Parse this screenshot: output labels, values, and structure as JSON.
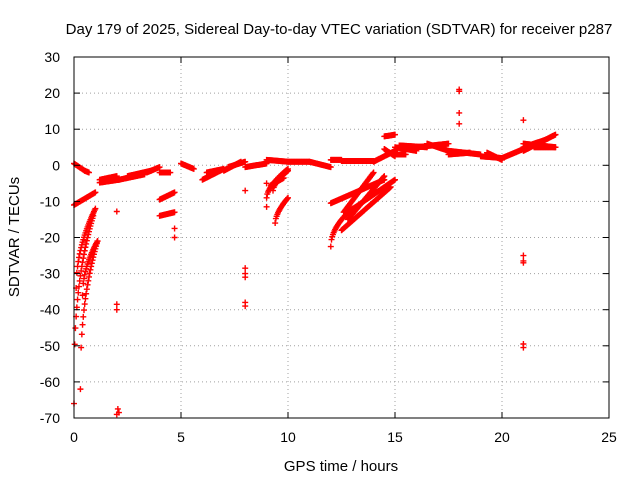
{
  "chart_data": {
    "type": "scatter",
    "title": "Day 179 of 2025, Sidereal Day-to-day VTEC variation (SDTVAR) for receiver p287",
    "xlabel": "GPS time / hours",
    "ylabel": "SDTVAR / TECUs",
    "xlim": [
      0,
      25
    ],
    "ylim": [
      -70,
      30
    ],
    "xticks": [
      0,
      5,
      10,
      15,
      20,
      25
    ],
    "yticks": [
      -70,
      -60,
      -50,
      -40,
      -30,
      -20,
      -10,
      0,
      10,
      20,
      30
    ],
    "grid": true,
    "marker": "+",
    "color": "#ff0000",
    "segments": [
      {
        "x0": 0.0,
        "x1": 0.5,
        "y0": 0.5,
        "y1": -1.5
      },
      {
        "x0": 0.5,
        "x1": 0.7,
        "y0": -1.5,
        "y1": -2.0
      },
      {
        "x0": 0.0,
        "x1": 1.0,
        "y0": -11.0,
        "y1": -7.5
      },
      {
        "x0": 0.0,
        "x1": 0.9,
        "y0": -66.0,
        "y1": -14.0,
        "curve": 0.35
      },
      {
        "x0": 0.1,
        "x1": 1.0,
        "y0": -34.0,
        "y1": -12.0,
        "curve": 0.5
      },
      {
        "x0": 0.3,
        "x1": 1.1,
        "y0": -62.0,
        "y1": -21.0,
        "curve": 0.4
      },
      {
        "x0": 0.4,
        "x1": 1.1,
        "y0": -36.0,
        "y1": -21.0,
        "curve": 0.5
      },
      {
        "x0": 1.2,
        "x1": 2.0,
        "y0": -4.0,
        "y1": -3.0
      },
      {
        "x0": 1.2,
        "x1": 2.1,
        "y0": -4.8,
        "y1": -4.0
      },
      {
        "x0": 2.1,
        "x1": 3.3,
        "y0": -4.0,
        "y1": -2.5
      },
      {
        "x0": 2.5,
        "x1": 3.6,
        "y0": -3.0,
        "y1": -1.5
      },
      {
        "x0": 3.4,
        "x1": 4.0,
        "y0": -2.0,
        "y1": -0.5
      },
      {
        "x0": 4.0,
        "x1": 4.5,
        "y0": -2.0,
        "y1": -2.0
      },
      {
        "x0": 4.0,
        "x1": 4.7,
        "y0": -9.5,
        "y1": -7.5
      },
      {
        "x0": 4.0,
        "x1": 4.7,
        "y0": -14.0,
        "y1": -13.0
      },
      {
        "x0": 5.0,
        "x1": 5.6,
        "y0": 0.5,
        "y1": -1.0
      },
      {
        "x0": 6.0,
        "x1": 7.0,
        "y0": -4.0,
        "y1": -1.0
      },
      {
        "x0": 6.2,
        "x1": 7.0,
        "y0": -2.0,
        "y1": -1.0
      },
      {
        "x0": 7.0,
        "x1": 7.8,
        "y0": -1.5,
        "y1": 1.0
      },
      {
        "x0": 7.2,
        "x1": 8.0,
        "y0": -0.5,
        "y1": 1.0
      },
      {
        "x0": 8.0,
        "x1": 9.0,
        "y0": -0.5,
        "y1": 0.5
      },
      {
        "x0": 9.0,
        "x1": 10.0,
        "y0": 1.5,
        "y1": 1.0
      },
      {
        "x0": 9.0,
        "x1": 10.0,
        "y0": -9.0,
        "y1": -1.0,
        "curve": 0.6
      },
      {
        "x0": 9.3,
        "x1": 10.0,
        "y0": -7.0,
        "y1": -1.5,
        "curve": 0.6
      },
      {
        "x0": 9.2,
        "x1": 9.8,
        "y0": -5.5,
        "y1": -3.5
      },
      {
        "x0": 9.4,
        "x1": 10.0,
        "y0": -16.0,
        "y1": -9.0,
        "curve": 0.6
      },
      {
        "x0": 10.0,
        "x1": 11.0,
        "y0": 1.0,
        "y1": 1.0
      },
      {
        "x0": 11.0,
        "x1": 12.0,
        "y0": 1.0,
        "y1": -0.5
      },
      {
        "x0": 12.0,
        "x1": 12.5,
        "y0": 1.5,
        "y1": 1.5
      },
      {
        "x0": 12.5,
        "x1": 14.0,
        "y0": 1.2,
        "y1": 1.2
      },
      {
        "x0": 12.0,
        "x1": 14.5,
        "y0": -10.5,
        "y1": -4.0
      },
      {
        "x0": 12.0,
        "x1": 13.0,
        "y0": -22.5,
        "y1": -12.0,
        "curve": 0.5
      },
      {
        "x0": 12.6,
        "x1": 14.0,
        "y0": -13.0,
        "y1": -2.0
      },
      {
        "x0": 12.8,
        "x1": 14.5,
        "y0": -15.0,
        "y1": -3.0
      },
      {
        "x0": 12.5,
        "x1": 14.8,
        "y0": -18.0,
        "y1": -6.0
      },
      {
        "x0": 12.8,
        "x1": 15.0,
        "y0": -13.0,
        "y1": -4.0
      },
      {
        "x0": 14.0,
        "x1": 15.0,
        "y0": 1.0,
        "y1": 4.0
      },
      {
        "x0": 14.5,
        "x1": 15.0,
        "y0": 4.5,
        "y1": 2.5
      },
      {
        "x0": 14.5,
        "x1": 15.0,
        "y0": 8.0,
        "y1": 8.5
      },
      {
        "x0": 15.0,
        "x1": 16.0,
        "y0": 5.0,
        "y1": 4.0
      },
      {
        "x0": 15.0,
        "x1": 15.5,
        "y0": 3.0,
        "y1": 3.0
      },
      {
        "x0": 15.2,
        "x1": 16.5,
        "y0": 5.5,
        "y1": 5.0
      },
      {
        "x0": 16.0,
        "x1": 17.5,
        "y0": 5.0,
        "y1": 6.0
      },
      {
        "x0": 16.5,
        "x1": 17.5,
        "y0": 6.0,
        "y1": 4.0
      },
      {
        "x0": 17.5,
        "x1": 19.0,
        "y0": 4.0,
        "y1": 3.0
      },
      {
        "x0": 17.5,
        "x1": 18.5,
        "y0": 3.0,
        "y1": 3.5
      },
      {
        "x0": 19.0,
        "x1": 20.0,
        "y0": 2.5,
        "y1": 2.0
      },
      {
        "x0": 19.3,
        "x1": 20.0,
        "y0": 3.5,
        "y1": 1.5
      },
      {
        "x0": 20.0,
        "x1": 21.0,
        "y0": 2.0,
        "y1": 4.5
      },
      {
        "x0": 21.0,
        "x1": 22.5,
        "y0": 4.0,
        "y1": 8.5
      },
      {
        "x0": 21.0,
        "x1": 22.5,
        "y0": 6.0,
        "y1": 5.0
      },
      {
        "x0": 21.0,
        "x1": 22.0,
        "y0": 5.0,
        "y1": 7.0
      },
      {
        "x0": 21.5,
        "x1": 22.5,
        "y0": 5.0,
        "y1": 5.0
      }
    ],
    "outliers": [
      {
        "x": 2.0,
        "y": -12.8
      },
      {
        "x": 2.0,
        "y": -38.5
      },
      {
        "x": 2.0,
        "y": -40.0
      },
      {
        "x": 2.05,
        "y": -67.5
      },
      {
        "x": 2.1,
        "y": -68.5
      },
      {
        "x": 2.0,
        "y": -69.0
      },
      {
        "x": 4.7,
        "y": -17.5
      },
      {
        "x": 4.7,
        "y": -20.0
      },
      {
        "x": 8.0,
        "y": -7.0
      },
      {
        "x": 8.0,
        "y": -28.5
      },
      {
        "x": 8.0,
        "y": -30.0
      },
      {
        "x": 8.0,
        "y": -31.0
      },
      {
        "x": 8.0,
        "y": -38.0
      },
      {
        "x": 8.0,
        "y": -39.0
      },
      {
        "x": 9.0,
        "y": -11.5
      },
      {
        "x": 9.0,
        "y": -5.0
      },
      {
        "x": 18.0,
        "y": 21.0
      },
      {
        "x": 18.0,
        "y": 20.5
      },
      {
        "x": 18.0,
        "y": 14.5
      },
      {
        "x": 18.0,
        "y": 11.5
      },
      {
        "x": 21.0,
        "y": 12.5
      },
      {
        "x": 21.0,
        "y": -25.0
      },
      {
        "x": 21.0,
        "y": -26.5
      },
      {
        "x": 21.0,
        "y": -27.0
      },
      {
        "x": 21.0,
        "y": -49.5
      },
      {
        "x": 21.0,
        "y": -50.5
      }
    ]
  }
}
